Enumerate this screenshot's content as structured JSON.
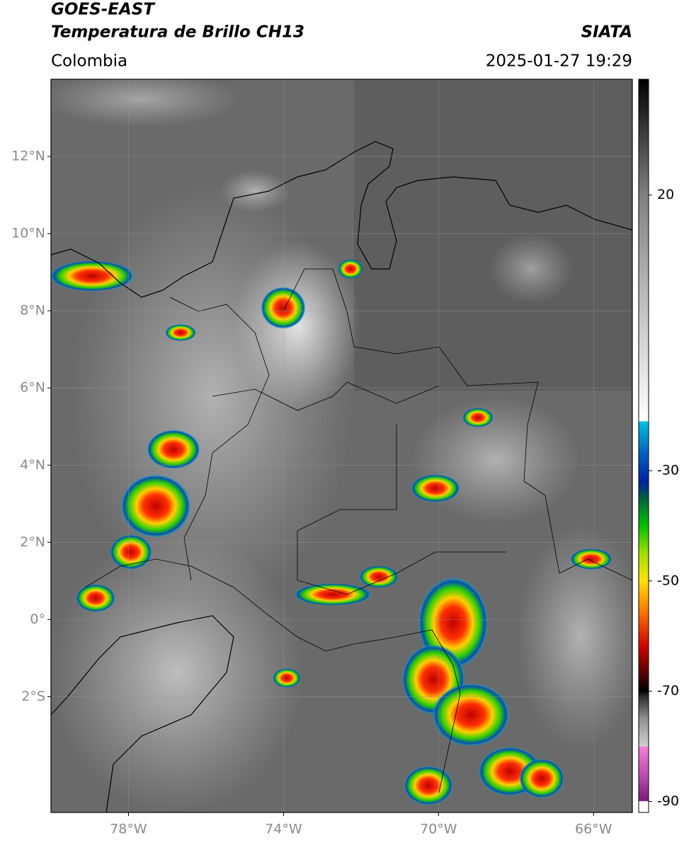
{
  "header": {
    "title_line1": "GOES-EAST",
    "title_line2": "Temperatura de Brillo CH13",
    "source": "SIATA",
    "region": "Colombia",
    "timestamp": "2025-01-27 19:29"
  },
  "map": {
    "xlim": [
      -80,
      -65
    ],
    "ylim": [
      -5,
      14
    ],
    "xticks": [
      {
        "value": -78,
        "label": "78°W"
      },
      {
        "value": -74,
        "label": "74°W"
      },
      {
        "value": -70,
        "label": "70°W"
      },
      {
        "value": -66,
        "label": "66°W"
      }
    ],
    "yticks": [
      {
        "value": 12,
        "label": "12°N"
      },
      {
        "value": 10,
        "label": "10°N"
      },
      {
        "value": 8,
        "label": "8°N"
      },
      {
        "value": 6,
        "label": "6°N"
      },
      {
        "value": 4,
        "label": "4°N"
      },
      {
        "value": 2,
        "label": "2°N"
      },
      {
        "value": 0,
        "label": "0°"
      },
      {
        "value": -2,
        "label": "2°S"
      }
    ],
    "grid": true
  },
  "colorbar": {
    "lim": [
      -92,
      41
    ],
    "ticks": [
      20,
      -30,
      -50,
      -70,
      -90
    ],
    "colormap": [
      [
        -92,
        "#ffffff"
      ],
      [
        -90,
        "#ffffff"
      ],
      [
        -89.9,
        "#7a1a7a"
      ],
      [
        -85,
        "#c050b0"
      ],
      [
        -80.1,
        "#f080d8"
      ],
      [
        -80,
        "#d0d0d0"
      ],
      [
        -75,
        "#909090"
      ],
      [
        -71,
        "#303030"
      ],
      [
        -70,
        "#000000"
      ],
      [
        -67,
        "#500000"
      ],
      [
        -62,
        "#d00000"
      ],
      [
        -55,
        "#ff8000"
      ],
      [
        -50,
        "#ffe000"
      ],
      [
        -45,
        "#a0e000"
      ],
      [
        -40,
        "#00c000"
      ],
      [
        -35,
        "#006040"
      ],
      [
        -32,
        "#0020a0"
      ],
      [
        -27,
        "#0060c0"
      ],
      [
        -21.1,
        "#00c0e0"
      ],
      [
        -21,
        "#ffffff"
      ],
      [
        0,
        "#c0c0c0"
      ],
      [
        20,
        "#808080"
      ],
      [
        41,
        "#000000"
      ]
    ]
  }
}
